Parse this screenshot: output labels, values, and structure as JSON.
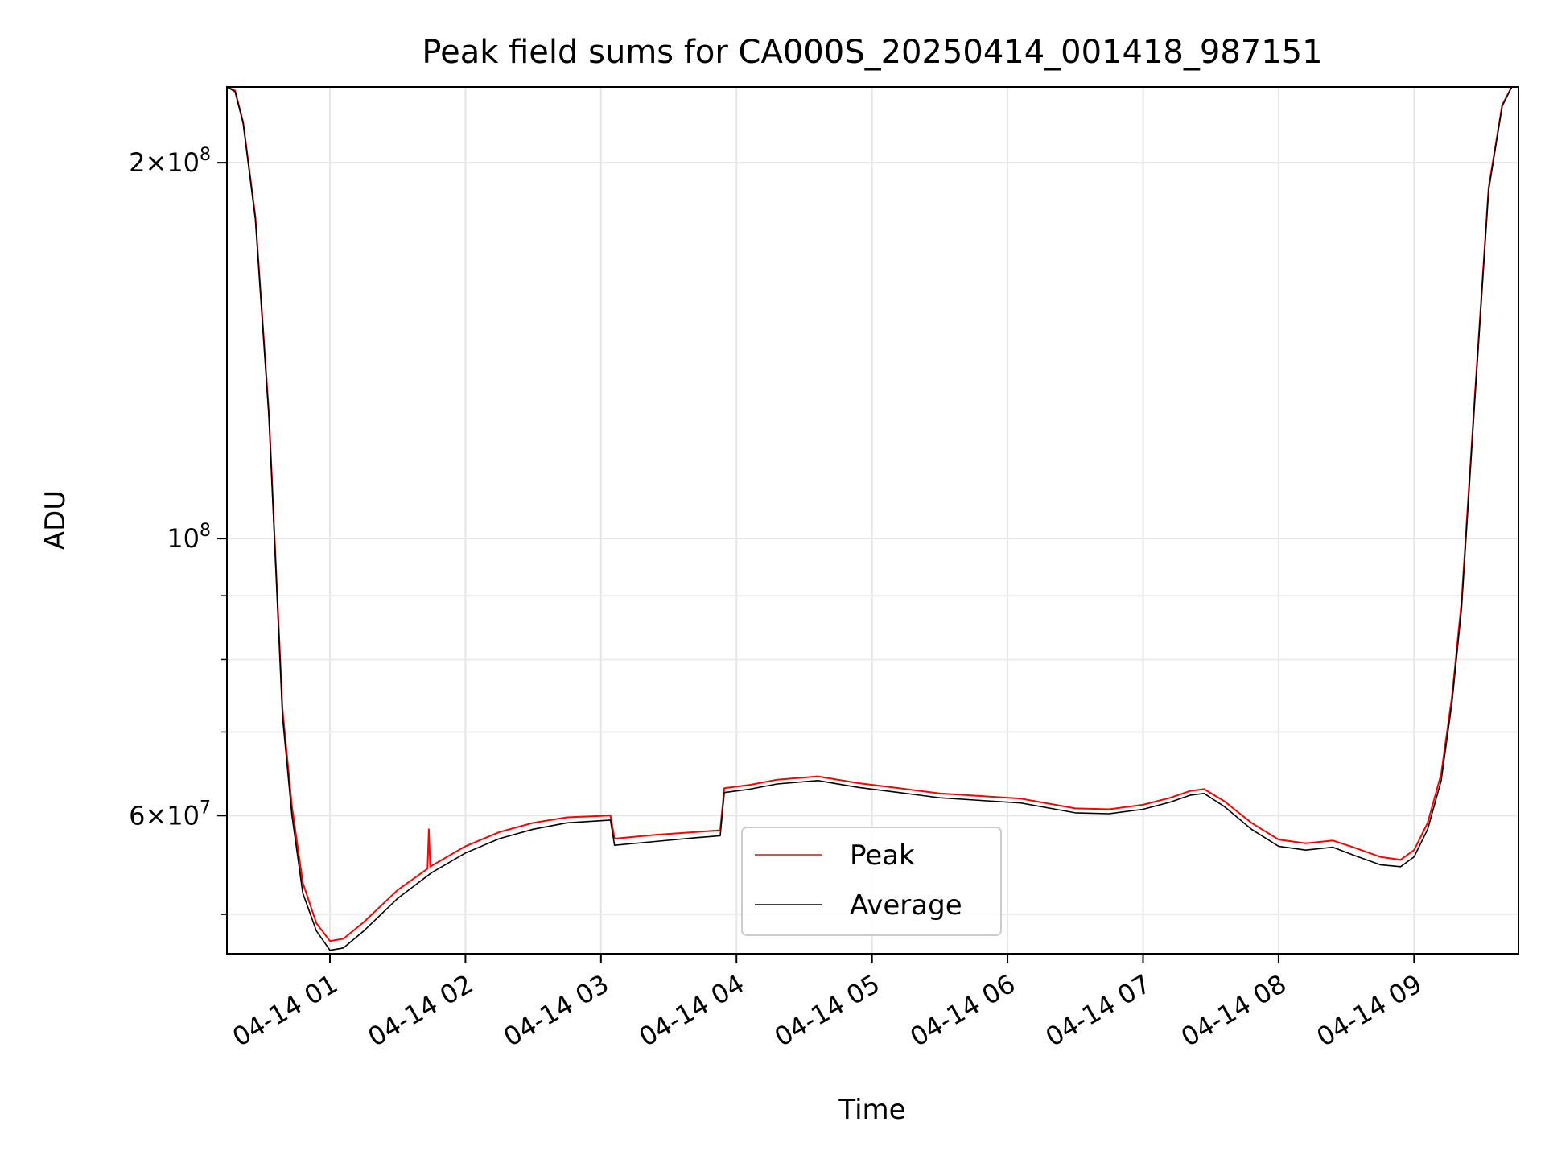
{
  "chart_data": {
    "type": "line",
    "title": "Peak field sums for CA000S_20250414_001418_987151",
    "xlabel": "Time",
    "ylabel": "ADU",
    "yscale": "log",
    "xlim_hours": [
      0.24,
      9.77
    ],
    "ylim": [
      46500000,
      230000000
    ],
    "x_ticks": [
      {
        "value": 1,
        "label": "04-14 01"
      },
      {
        "value": 2,
        "label": "04-14 02"
      },
      {
        "value": 3,
        "label": "04-14 03"
      },
      {
        "value": 4,
        "label": "04-14 04"
      },
      {
        "value": 5,
        "label": "04-14 05"
      },
      {
        "value": 6,
        "label": "04-14 06"
      },
      {
        "value": 7,
        "label": "04-14 07"
      },
      {
        "value": 8,
        "label": "04-14 08"
      },
      {
        "value": 9,
        "label": "04-14 09"
      }
    ],
    "y_major_ticks": [
      {
        "value": 60000000,
        "mant": "6",
        "exp": "7"
      },
      {
        "value": 100000000,
        "mant": "",
        "exp": "8"
      },
      {
        "value": 200000000,
        "mant": "2",
        "exp": "8"
      }
    ],
    "y_minor_ticks": [
      50000000,
      70000000,
      80000000,
      90000000
    ],
    "grid": true,
    "legend": {
      "position": "lower-center",
      "entries": [
        "Peak",
        "Average"
      ]
    },
    "series": [
      {
        "name": "Average",
        "color": "#000000",
        "points": [
          [
            0.24,
            230000000
          ],
          [
            0.3,
            228000000
          ],
          [
            0.36,
            215000000
          ],
          [
            0.45,
            180000000
          ],
          [
            0.55,
            125000000
          ],
          [
            0.6,
            95000000
          ],
          [
            0.65,
            72000000
          ],
          [
            0.72,
            60000000
          ],
          [
            0.8,
            52000000
          ],
          [
            0.9,
            48500000
          ],
          [
            1.0,
            46800000
          ],
          [
            1.1,
            47000000
          ],
          [
            1.25,
            48500000
          ],
          [
            1.5,
            51500000
          ],
          [
            1.75,
            54000000
          ],
          [
            2.0,
            56000000
          ],
          [
            2.25,
            57500000
          ],
          [
            2.5,
            58500000
          ],
          [
            2.75,
            59200000
          ],
          [
            3.07,
            59500000
          ],
          [
            3.1,
            56800000
          ],
          [
            3.4,
            57200000
          ],
          [
            3.7,
            57600000
          ],
          [
            3.88,
            57800000
          ],
          [
            3.91,
            62600000
          ],
          [
            4.1,
            63000000
          ],
          [
            4.3,
            63600000
          ],
          [
            4.6,
            64000000
          ],
          [
            4.9,
            63200000
          ],
          [
            5.2,
            62600000
          ],
          [
            5.5,
            62000000
          ],
          [
            5.8,
            61700000
          ],
          [
            6.1,
            61400000
          ],
          [
            6.5,
            60300000
          ],
          [
            6.75,
            60200000
          ],
          [
            7.0,
            60700000
          ],
          [
            7.2,
            61500000
          ],
          [
            7.35,
            62300000
          ],
          [
            7.45,
            62500000
          ],
          [
            7.6,
            61000000
          ],
          [
            7.8,
            58500000
          ],
          [
            8.0,
            56700000
          ],
          [
            8.2,
            56300000
          ],
          [
            8.4,
            56600000
          ],
          [
            8.55,
            55800000
          ],
          [
            8.75,
            54800000
          ],
          [
            8.9,
            54600000
          ],
          [
            9.0,
            55600000
          ],
          [
            9.1,
            58500000
          ],
          [
            9.2,
            64000000
          ],
          [
            9.28,
            74000000
          ],
          [
            9.35,
            88000000
          ],
          [
            9.45,
            130000000
          ],
          [
            9.55,
            190000000
          ],
          [
            9.65,
            222000000
          ],
          [
            9.72,
            230000000
          ],
          [
            9.77,
            230000000
          ]
        ]
      },
      {
        "name": "Peak",
        "color": "#ff0000",
        "points": [
          [
            0.24,
            230000000
          ],
          [
            0.3,
            228500000
          ],
          [
            0.36,
            215500000
          ],
          [
            0.45,
            181000000
          ],
          [
            0.55,
            126000000
          ],
          [
            0.6,
            96000000
          ],
          [
            0.65,
            73000000
          ],
          [
            0.72,
            61000000
          ],
          [
            0.8,
            53000000
          ],
          [
            0.9,
            49200000
          ],
          [
            1.0,
            47600000
          ],
          [
            1.1,
            47800000
          ],
          [
            1.25,
            49300000
          ],
          [
            1.5,
            52300000
          ],
          [
            1.72,
            54400000
          ],
          [
            1.73,
            58500000
          ],
          [
            1.74,
            54600000
          ],
          [
            2.0,
            56700000
          ],
          [
            2.25,
            58200000
          ],
          [
            2.5,
            59200000
          ],
          [
            2.75,
            59800000
          ],
          [
            3.07,
            60000000
          ],
          [
            3.1,
            57500000
          ],
          [
            3.4,
            57900000
          ],
          [
            3.7,
            58200000
          ],
          [
            3.88,
            58400000
          ],
          [
            3.91,
            63100000
          ],
          [
            4.1,
            63500000
          ],
          [
            4.3,
            64100000
          ],
          [
            4.6,
            64500000
          ],
          [
            4.9,
            63700000
          ],
          [
            5.2,
            63100000
          ],
          [
            5.5,
            62500000
          ],
          [
            5.8,
            62200000
          ],
          [
            6.1,
            61900000
          ],
          [
            6.5,
            60800000
          ],
          [
            6.75,
            60700000
          ],
          [
            7.0,
            61200000
          ],
          [
            7.2,
            62000000
          ],
          [
            7.35,
            62800000
          ],
          [
            7.45,
            63000000
          ],
          [
            7.6,
            61600000
          ],
          [
            7.8,
            59200000
          ],
          [
            8.0,
            57400000
          ],
          [
            8.2,
            57000000
          ],
          [
            8.4,
            57300000
          ],
          [
            8.55,
            56600000
          ],
          [
            8.75,
            55600000
          ],
          [
            8.9,
            55300000
          ],
          [
            9.0,
            56300000
          ],
          [
            9.1,
            59200000
          ],
          [
            9.2,
            64800000
          ],
          [
            9.28,
            74800000
          ],
          [
            9.35,
            89000000
          ],
          [
            9.45,
            131000000
          ],
          [
            9.55,
            191000000
          ],
          [
            9.65,
            222500000
          ],
          [
            9.72,
            230000000
          ],
          [
            9.77,
            230000000
          ]
        ]
      }
    ]
  }
}
